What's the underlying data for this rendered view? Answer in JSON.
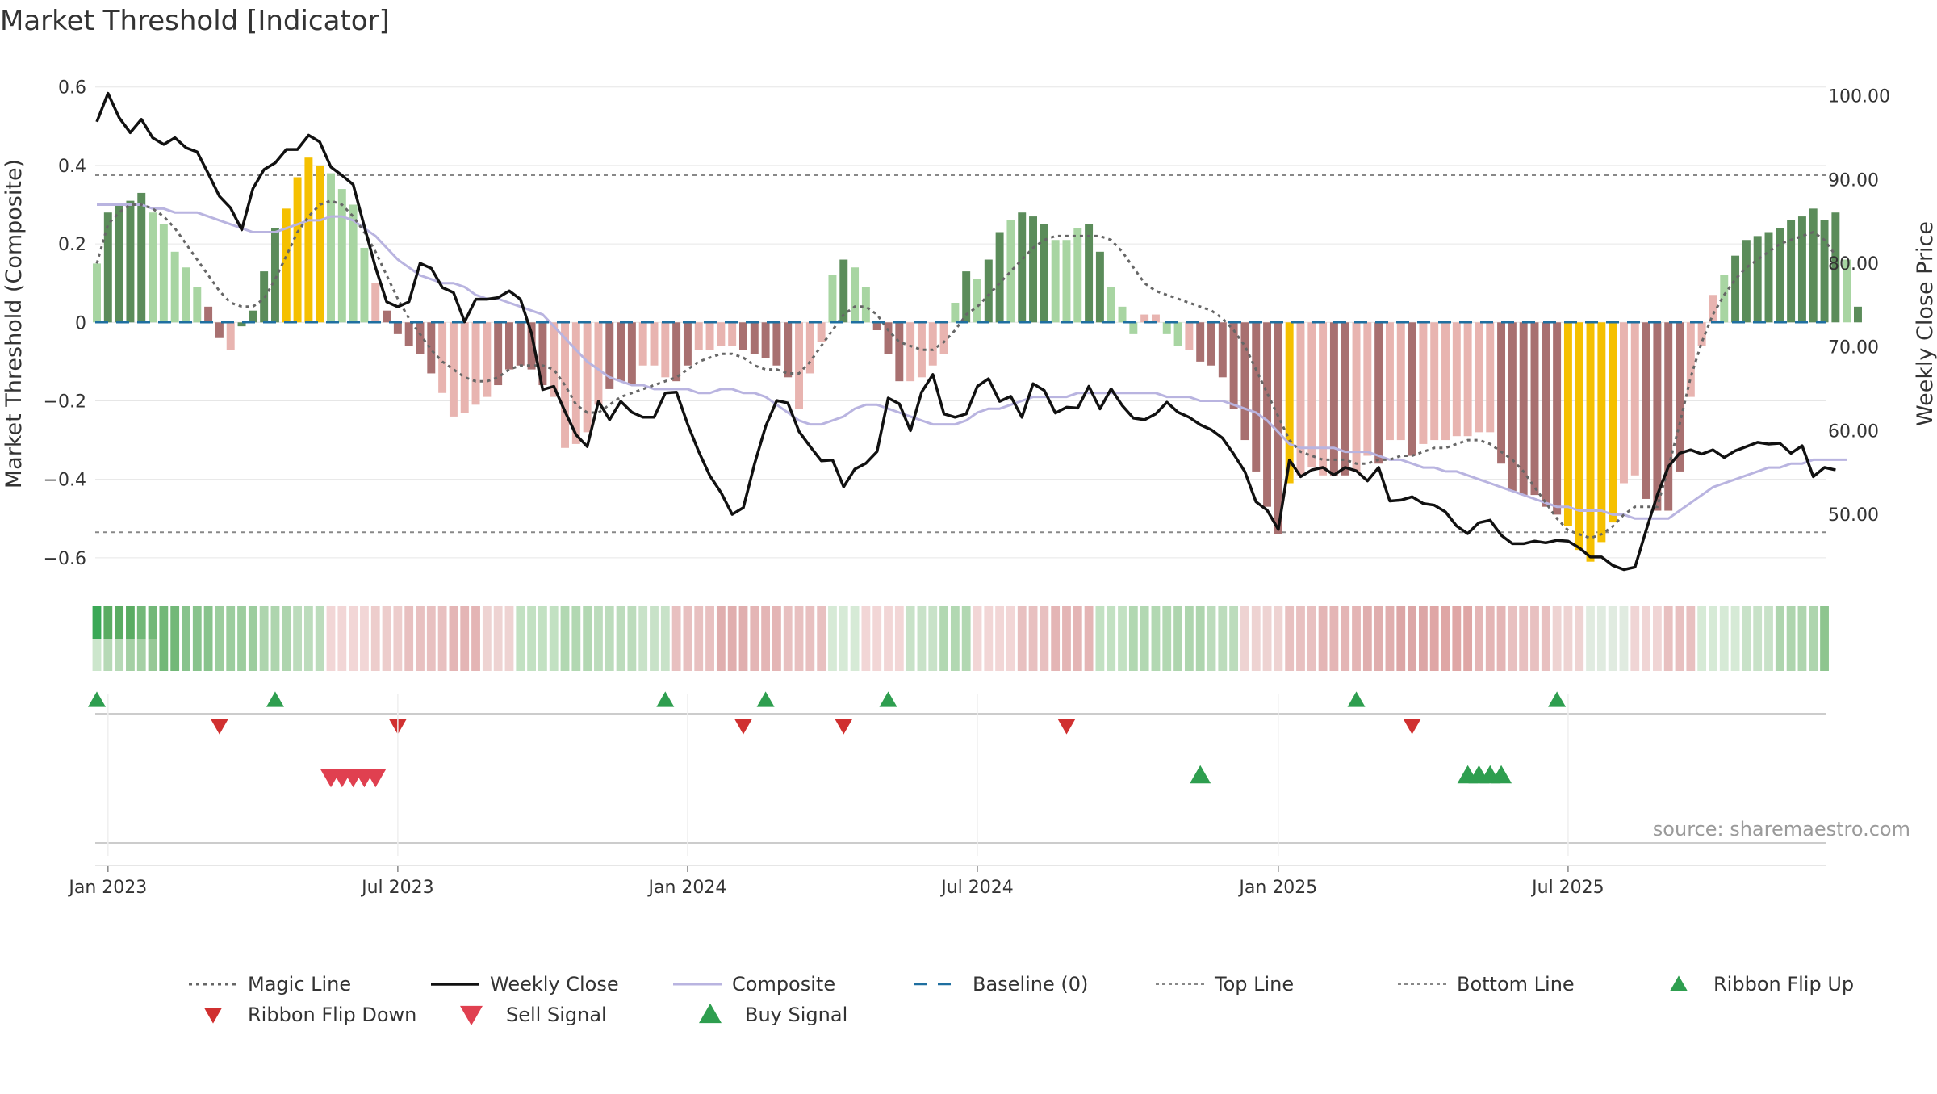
{
  "chart_data": {
    "type": "bar",
    "title": "Market Threshold [Indicator]",
    "ylabel_left": "Market Threshold (Composite)",
    "ylabel_right": "Weekly Close Price",
    "ylim_left": [
      -0.66,
      0.62
    ],
    "ylim_right": [
      42.0,
      102.0
    ],
    "yticks_left": [
      "0.6",
      "0.4",
      "0.2",
      "0",
      "−0.2",
      "−0.4",
      "−0.6"
    ],
    "yticks_left_values": [
      0.6,
      0.4,
      0.2,
      0,
      -0.2,
      -0.4,
      -0.6
    ],
    "yticks_right": [
      "100.00",
      "90.00",
      "80.00",
      "70.00",
      "60.00",
      "50.00"
    ],
    "yticks_right_values": [
      100,
      90,
      80,
      70,
      60,
      50
    ],
    "x_start": "2022-12-26",
    "x_step_days": 7,
    "xticks": [
      {
        "label": "Jan 2023",
        "date": "2023-01-02"
      },
      {
        "label": "Jul 2023",
        "date": "2023-07-03"
      },
      {
        "label": "Jan 2024",
        "date": "2024-01-01"
      },
      {
        "label": "Jul 2024",
        "date": "2024-07-01"
      },
      {
        "label": "Jan 2025",
        "date": "2025-01-06"
      },
      {
        "label": "Jul 2025",
        "date": "2025-07-07"
      }
    ],
    "top_line": 0.375,
    "bottom_line": -0.535,
    "colors": {
      "strong_green": "#5b8c5a",
      "light_green": "#a8d5a2",
      "strong_red": "#a87070",
      "light_red": "#e8b4b0",
      "gold": "#f5c000",
      "weekly_close": "#111111",
      "composite": "#b9b4e0",
      "magic": "#666666",
      "baseline": "#1f6fa0",
      "top_bottom": "#888888",
      "buy": "#2e9e4f",
      "sell_flip": "#d03030",
      "sell": "#e04050",
      "grid": "#e6e6e6"
    },
    "bar_kinds_legend": {
      "G": "strong_green",
      "g": "light_green",
      "R": "strong_red",
      "r": "light_red",
      "Y": "gold"
    },
    "series": [
      {
        "name": "Composite bars",
        "kinds": [
          "g",
          "G",
          "G",
          "G",
          "G",
          "g",
          "g",
          "g",
          "g",
          "g",
          "R",
          "R",
          "r",
          "G",
          "G",
          "G",
          "G",
          "Y",
          "Y",
          "Y",
          "Y",
          "g",
          "g",
          "g",
          "g",
          "r",
          "R",
          "R",
          "R",
          "R",
          "R",
          "r",
          "r",
          "r",
          "r",
          "r",
          "R",
          "R",
          "R",
          "R",
          "R",
          "r",
          "r",
          "r",
          "r",
          "r",
          "R",
          "R",
          "R",
          "r",
          "r",
          "r",
          "R",
          "R",
          "r",
          "r",
          "r",
          "r",
          "R",
          "R",
          "R",
          "R",
          "R",
          "r",
          "r",
          "r",
          "g",
          "G",
          "g",
          "g",
          "R",
          "R",
          "R",
          "r",
          "r",
          "r",
          "r",
          "g",
          "G",
          "g",
          "G",
          "G",
          "g",
          "G",
          "G",
          "G",
          "g",
          "g",
          "g",
          "G",
          "G",
          "g",
          "g",
          "g",
          "r",
          "r",
          "g",
          "g",
          "r",
          "R",
          "R",
          "R",
          "R",
          "R",
          "R",
          "R",
          "R",
          "Y",
          "r",
          "r",
          "r",
          "R",
          "R",
          "r",
          "r",
          "R",
          "r",
          "r",
          "R",
          "r",
          "r",
          "r",
          "r",
          "r",
          "r",
          "r",
          "R",
          "R",
          "R",
          "R",
          "R",
          "R",
          "Y",
          "Y",
          "Y",
          "Y",
          "Y",
          "r",
          "r",
          "R",
          "R",
          "R",
          "R",
          "r",
          "r",
          "r",
          "g",
          "G",
          "G",
          "G",
          "G",
          "G",
          "G",
          "G",
          "G",
          "G",
          "G",
          "g",
          "G",
          "g",
          "g"
        ],
        "values": [
          0.15,
          0.28,
          0.3,
          0.31,
          0.33,
          0.28,
          0.25,
          0.18,
          0.14,
          0.09,
          0.04,
          -0.04,
          -0.07,
          -0.01,
          0.03,
          0.13,
          0.24,
          0.29,
          0.37,
          0.42,
          0.4,
          0.38,
          0.34,
          0.3,
          0.19,
          0.1,
          0.03,
          -0.03,
          -0.06,
          -0.08,
          -0.13,
          -0.18,
          -0.24,
          -0.23,
          -0.21,
          -0.19,
          -0.16,
          -0.12,
          -0.11,
          -0.12,
          -0.16,
          -0.19,
          -0.32,
          -0.31,
          -0.28,
          -0.21,
          -0.17,
          -0.15,
          -0.16,
          -0.11,
          -0.11,
          -0.14,
          -0.15,
          -0.11,
          -0.07,
          -0.07,
          -0.06,
          -0.06,
          -0.07,
          -0.08,
          -0.09,
          -0.11,
          -0.14,
          -0.22,
          -0.13,
          -0.05,
          0.12,
          0.16,
          0.14,
          0.09,
          -0.02,
          -0.08,
          -0.15,
          -0.15,
          -0.14,
          -0.11,
          -0.08,
          0.05,
          0.13,
          0.11,
          0.16,
          0.23,
          0.26,
          0.28,
          0.27,
          0.25,
          0.21,
          0.21,
          0.24,
          0.25,
          0.18,
          0.09,
          0.04,
          -0.03,
          0.02,
          0.02,
          -0.03,
          -0.06,
          -0.07,
          -0.1,
          -0.11,
          -0.14,
          -0.22,
          -0.3,
          -0.38,
          -0.47,
          -0.54,
          -0.41,
          -0.39,
          -0.37,
          -0.39,
          -0.39,
          -0.39,
          -0.38,
          -0.34,
          -0.36,
          -0.3,
          -0.3,
          -0.34,
          -0.31,
          -0.3,
          -0.3,
          -0.29,
          -0.29,
          -0.28,
          -0.28,
          -0.36,
          -0.43,
          -0.44,
          -0.44,
          -0.47,
          -0.49,
          -0.52,
          -0.58,
          -0.61,
          -0.56,
          -0.51,
          -0.41,
          -0.39,
          -0.45,
          -0.48,
          -0.48,
          -0.38,
          -0.19,
          -0.06,
          0.07,
          0.12,
          0.17,
          0.21,
          0.22,
          0.23,
          0.24,
          0.26,
          0.27,
          0.29,
          0.26,
          0.28,
          0.16,
          0.04
        ]
      },
      {
        "name": "Weekly Close",
        "values": [
          96.9,
          100.3,
          97.4,
          95.6,
          97.2,
          95.0,
          94.2,
          95.0,
          93.8,
          93.3,
          90.7,
          88.0,
          86.6,
          84.0,
          88.9,
          91.2,
          92.0,
          93.6,
          93.6,
          95.3,
          94.5,
          91.5,
          90.5,
          89.4,
          84.4,
          79.5,
          75.4,
          74.8,
          75.4,
          80.0,
          79.4,
          77.1,
          76.5,
          73.0,
          75.7,
          75.7,
          75.9,
          76.7,
          75.7,
          71.6,
          64.9,
          65.3,
          62.3,
          59.5,
          58.1,
          63.5,
          61.3,
          63.5,
          62.2,
          61.6,
          61.6,
          64.5,
          64.6,
          60.8,
          57.5,
          54.6,
          52.6,
          50.0,
          50.8,
          56.0,
          60.5,
          63.6,
          63.3,
          59.9,
          58.1,
          56.4,
          56.5,
          53.3,
          55.4,
          56.1,
          57.5,
          63.9,
          63.2,
          60.0,
          64.6,
          66.7,
          62.0,
          61.6,
          62.0,
          65.3,
          66.2,
          63.5,
          64.1,
          61.6,
          65.6,
          64.8,
          62.1,
          62.8,
          62.7,
          65.3,
          62.6,
          65.0,
          63.0,
          61.5,
          61.3,
          62.0,
          63.4,
          62.2,
          61.6,
          60.7,
          60.1,
          59.1,
          57.2,
          55.1,
          51.5,
          50.5,
          48.2,
          56.5,
          54.5,
          55.3,
          55.6,
          54.7,
          55.6,
          55.2,
          54.0,
          55.6,
          51.6,
          51.7,
          52.1,
          51.3,
          51.1,
          50.3,
          48.6,
          47.7,
          49.0,
          49.3,
          47.5,
          46.5,
          46.5,
          46.8,
          46.6,
          46.9,
          46.8,
          46.0,
          44.9,
          44.9,
          43.9,
          43.4,
          43.7,
          48.1,
          52.3,
          55.7,
          57.3,
          57.7,
          57.2,
          57.7,
          56.8,
          57.6,
          58.1,
          58.6,
          58.4,
          58.5,
          57.3,
          58.2,
          54.5,
          55.6,
          55.3
        ]
      },
      {
        "name": "Composite",
        "values": [
          0.3,
          0.3,
          0.3,
          0.3,
          0.3,
          0.29,
          0.29,
          0.28,
          0.28,
          0.28,
          0.27,
          0.26,
          0.25,
          0.24,
          0.23,
          0.23,
          0.23,
          0.24,
          0.25,
          0.26,
          0.26,
          0.27,
          0.27,
          0.26,
          0.24,
          0.22,
          0.19,
          0.16,
          0.14,
          0.12,
          0.11,
          0.1,
          0.1,
          0.09,
          0.07,
          0.06,
          0.06,
          0.05,
          0.04,
          0.03,
          0.02,
          -0.01,
          -0.04,
          -0.07,
          -0.1,
          -0.12,
          -0.14,
          -0.15,
          -0.16,
          -0.16,
          -0.17,
          -0.17,
          -0.17,
          -0.17,
          -0.18,
          -0.18,
          -0.17,
          -0.17,
          -0.18,
          -0.18,
          -0.19,
          -0.21,
          -0.23,
          -0.25,
          -0.26,
          -0.26,
          -0.25,
          -0.24,
          -0.22,
          -0.21,
          -0.21,
          -0.22,
          -0.23,
          -0.24,
          -0.25,
          -0.26,
          -0.26,
          -0.26,
          -0.25,
          -0.23,
          -0.22,
          -0.22,
          -0.21,
          -0.2,
          -0.19,
          -0.19,
          -0.19,
          -0.19,
          -0.18,
          -0.18,
          -0.18,
          -0.18,
          -0.18,
          -0.18,
          -0.18,
          -0.18,
          -0.19,
          -0.19,
          -0.19,
          -0.2,
          -0.2,
          -0.2,
          -0.21,
          -0.22,
          -0.23,
          -0.25,
          -0.28,
          -0.31,
          -0.32,
          -0.32,
          -0.32,
          -0.32,
          -0.33,
          -0.33,
          -0.33,
          -0.34,
          -0.35,
          -0.35,
          -0.36,
          -0.37,
          -0.37,
          -0.38,
          -0.38,
          -0.39,
          -0.4,
          -0.41,
          -0.42,
          -0.43,
          -0.44,
          -0.45,
          -0.46,
          -0.47,
          -0.47,
          -0.48,
          -0.48,
          -0.48,
          -0.49,
          -0.49,
          -0.5,
          -0.5,
          -0.5,
          -0.5,
          -0.48,
          -0.46,
          -0.44,
          -0.42,
          -0.41,
          -0.4,
          -0.39,
          -0.38,
          -0.37,
          -0.37,
          -0.36,
          -0.36,
          -0.35,
          -0.35,
          -0.35,
          -0.35
        ]
      },
      {
        "name": "Magic Line",
        "values": [
          0.15,
          0.25,
          0.28,
          0.3,
          0.3,
          0.29,
          0.27,
          0.24,
          0.2,
          0.16,
          0.12,
          0.08,
          0.05,
          0.04,
          0.04,
          0.06,
          0.11,
          0.17,
          0.23,
          0.27,
          0.3,
          0.31,
          0.3,
          0.27,
          0.23,
          0.18,
          0.12,
          0.06,
          0.01,
          -0.03,
          -0.07,
          -0.1,
          -0.12,
          -0.14,
          -0.15,
          -0.15,
          -0.14,
          -0.12,
          -0.11,
          -0.11,
          -0.11,
          -0.12,
          -0.16,
          -0.21,
          -0.23,
          -0.23,
          -0.21,
          -0.19,
          -0.18,
          -0.17,
          -0.16,
          -0.15,
          -0.14,
          -0.12,
          -0.1,
          -0.09,
          -0.08,
          -0.08,
          -0.09,
          -0.11,
          -0.12,
          -0.12,
          -0.13,
          -0.13,
          -0.1,
          -0.06,
          -0.02,
          0.02,
          0.04,
          0.04,
          0.02,
          -0.02,
          -0.05,
          -0.06,
          -0.07,
          -0.07,
          -0.05,
          -0.02,
          0.02,
          0.04,
          0.07,
          0.1,
          0.13,
          0.16,
          0.19,
          0.21,
          0.22,
          0.22,
          0.22,
          0.22,
          0.22,
          0.21,
          0.18,
          0.14,
          0.1,
          0.08,
          0.07,
          0.06,
          0.05,
          0.04,
          0.03,
          0.01,
          -0.02,
          -0.06,
          -0.12,
          -0.18,
          -0.24,
          -0.3,
          -0.33,
          -0.34,
          -0.35,
          -0.35,
          -0.35,
          -0.36,
          -0.36,
          -0.35,
          -0.35,
          -0.34,
          -0.34,
          -0.33,
          -0.32,
          -0.32,
          -0.31,
          -0.3,
          -0.3,
          -0.31,
          -0.33,
          -0.35,
          -0.38,
          -0.42,
          -0.46,
          -0.5,
          -0.53,
          -0.54,
          -0.55,
          -0.54,
          -0.52,
          -0.49,
          -0.47,
          -0.47,
          -0.47,
          -0.37,
          -0.26,
          -0.14,
          -0.05,
          0.02,
          0.07,
          0.11,
          0.14,
          0.16,
          0.18,
          0.2,
          0.21,
          0.22,
          0.23,
          0.21,
          0.17
        ]
      }
    ],
    "ribbon": {
      "band_a": [
        "#3aa856",
        "#5aac62",
        "#72b878",
        "#88c38c",
        "#9ccd9e",
        "#aed5ae",
        "#bcdcbc",
        "#f2d6d6",
        "#edcdcc",
        "#e8c0c0",
        "#e4b5b5",
        "#eed3d2",
        "#c2e1c2",
        "#b2d8b2",
        "#bcdcbc",
        "#c8e2c8",
        "#e8c0c0",
        "#e0aeae",
        "#e4b5b5",
        "#e8c0c0",
        "#d6ead6",
        "#f2d6d6",
        "#c8e2c8",
        "#b2d8b2",
        "#f2d6d6",
        "#e8c0c0",
        "#e4b5b5",
        "#c2e1c2",
        "#b2d8b2",
        "#aed5ae",
        "#bcdcbc",
        "#eed3d2",
        "#e8c0c0",
        "#e4b5b5",
        "#e0aeae",
        "#dca6a6",
        "#dfa6a5",
        "#e4b5b5",
        "#e8c0c0",
        "#eed3d2",
        "#e0ebe0",
        "#f0d5d5",
        "#e8c0c0",
        "#d6ead6",
        "#c8e2c8",
        "#aed5ae",
        "#8ec58f",
        "#76ba79"
      ],
      "band_b": [
        "#d9eed9",
        "#cce6cc",
        "#b6d9b6",
        "#a4d0a4",
        "#96c896",
        "#88c088"
      ],
      "flip_up_dates": [
        "2022-12-26",
        "2023-04-17",
        "2023-12-18",
        "2024-02-19",
        "2024-05-06",
        "2025-02-24",
        "2025-06-30"
      ],
      "flip_down_dates": [
        "2023-03-13",
        "2023-07-03",
        "2024-02-05",
        "2024-04-08",
        "2024-08-26",
        "2025-03-31"
      ],
      "sell_dates": [
        "2023-05-22",
        "2023-05-29",
        "2023-06-05",
        "2023-06-12",
        "2023-06-19"
      ],
      "buy_dates": [
        "2024-11-18",
        "2025-05-05",
        "2025-05-12",
        "2025-05-19",
        "2025-05-26"
      ]
    },
    "legend_placement": "bottom",
    "legend": [
      {
        "label": "Magic Line",
        "symbol": "dotted",
        "color_key": "magic"
      },
      {
        "label": "Weekly Close",
        "symbol": "solid",
        "color_key": "weekly_close"
      },
      {
        "label": "Composite",
        "symbol": "solid-light",
        "color_key": "composite"
      },
      {
        "label": "Baseline (0)",
        "symbol": "dashed",
        "color_key": "baseline"
      },
      {
        "label": "Top Line",
        "symbol": "dotted-light",
        "color_key": "top_bottom"
      },
      {
        "label": "Bottom Line",
        "symbol": "dotted-light",
        "color_key": "top_bottom"
      },
      {
        "label": "Ribbon Flip Up",
        "symbol": "triangle-up-small",
        "color_key": "buy"
      },
      {
        "label": "Ribbon Flip Down",
        "symbol": "triangle-down-small",
        "color_key": "sell_flip"
      },
      {
        "label": "Sell Signal",
        "symbol": "triangle-down",
        "color_key": "sell"
      },
      {
        "label": "Buy Signal",
        "symbol": "triangle-up",
        "color_key": "buy"
      }
    ],
    "source": "source: sharemaestro.com"
  }
}
